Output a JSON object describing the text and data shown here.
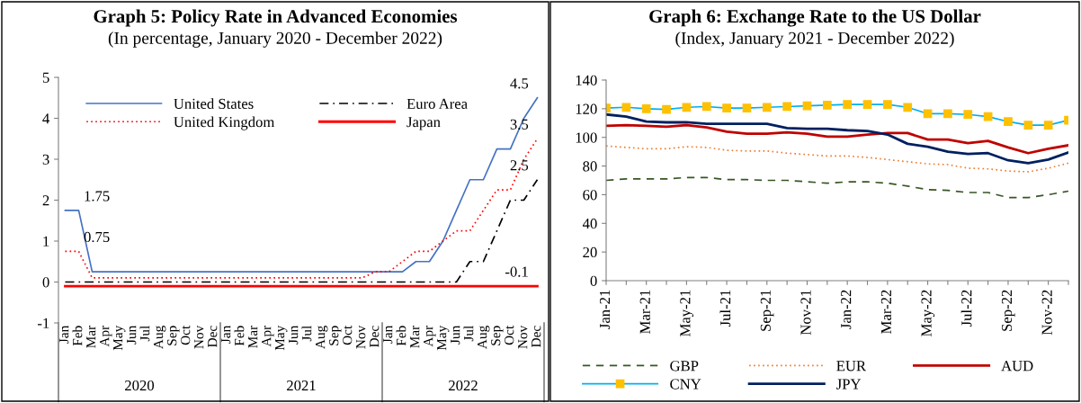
{
  "chart_data": [
    {
      "type": "line",
      "title": "Graph 5: Policy Rate in Advanced Economies",
      "subtitle": "(In percentage, January 2020 - December 2022)",
      "categories": [
        "Jan",
        "Feb",
        "Mar",
        "Apr",
        "May",
        "Jun",
        "Jul",
        "Aug",
        "Sep",
        "Oct",
        "Nov",
        "Dec",
        "Jan",
        "Feb",
        "Mar",
        "Apr",
        "May",
        "Jun",
        "Jul",
        "Aug",
        "Sep",
        "Oct",
        "Nov",
        "Dec",
        "Jan",
        "Feb",
        "Mar",
        "Apr",
        "May",
        "Jun",
        "Jul",
        "Aug",
        "Sep",
        "Oct",
        "Nov",
        "Dec"
      ],
      "series": [
        {
          "name": "United States",
          "color": "#4472c4",
          "line_style": "solid",
          "value_labels": [
            null,
            "1.75",
            null,
            null,
            null,
            null,
            null,
            null,
            null,
            null,
            null,
            null,
            null,
            null,
            null,
            null,
            null,
            null,
            null,
            null,
            null,
            null,
            null,
            null,
            null,
            null,
            null,
            null,
            null,
            null,
            null,
            null,
            null,
            null,
            null,
            "4.5"
          ],
          "values": [
            1.75,
            1.75,
            0.25,
            0.25,
            0.25,
            0.25,
            0.25,
            0.25,
            0.25,
            0.25,
            0.25,
            0.25,
            0.25,
            0.25,
            0.25,
            0.25,
            0.25,
            0.25,
            0.25,
            0.25,
            0.25,
            0.25,
            0.25,
            0.25,
            0.25,
            0.25,
            0.5,
            0.5,
            1.0,
            1.75,
            2.5,
            2.5,
            3.25,
            3.25,
            4.0,
            4.5
          ]
        },
        {
          "name": "United Kingdom",
          "color": "#ff0000",
          "line_style": "dotted",
          "value_labels": [
            null,
            "0.75",
            null,
            null,
            null,
            null,
            null,
            null,
            null,
            null,
            null,
            null,
            null,
            null,
            null,
            null,
            null,
            null,
            null,
            null,
            null,
            null,
            null,
            null,
            null,
            null,
            null,
            null,
            null,
            null,
            null,
            null,
            null,
            null,
            null,
            "3.5"
          ],
          "values": [
            0.75,
            0.75,
            0.1,
            0.1,
            0.1,
            0.1,
            0.1,
            0.1,
            0.1,
            0.1,
            0.1,
            0.1,
            0.1,
            0.1,
            0.1,
            0.1,
            0.1,
            0.1,
            0.1,
            0.1,
            0.1,
            0.1,
            0.1,
            0.25,
            0.25,
            0.5,
            0.75,
            0.75,
            1.0,
            1.25,
            1.25,
            1.75,
            2.25,
            2.25,
            3.0,
            3.5
          ]
        },
        {
          "name": "Euro Area",
          "color": "#000000",
          "line_style": "dashdot",
          "value_labels": [
            null,
            null,
            null,
            null,
            null,
            null,
            null,
            null,
            null,
            null,
            null,
            null,
            null,
            null,
            null,
            null,
            null,
            null,
            null,
            null,
            null,
            null,
            null,
            null,
            null,
            null,
            null,
            null,
            null,
            null,
            null,
            null,
            null,
            null,
            null,
            "2.5"
          ],
          "values": [
            0,
            0,
            0,
            0,
            0,
            0,
            0,
            0,
            0,
            0,
            0,
            0,
            0,
            0,
            0,
            0,
            0,
            0,
            0,
            0,
            0,
            0,
            0,
            0,
            0,
            0,
            0,
            0,
            0,
            0,
            0.5,
            0.5,
            1.25,
            2.0,
            2.0,
            2.5
          ]
        },
        {
          "name": "Japan",
          "color": "#ff0000",
          "line_style": "solid",
          "value_labels": [
            null,
            null,
            null,
            null,
            null,
            null,
            null,
            null,
            null,
            null,
            null,
            null,
            null,
            null,
            null,
            null,
            null,
            null,
            null,
            null,
            null,
            null,
            null,
            null,
            null,
            null,
            null,
            null,
            null,
            null,
            null,
            null,
            null,
            null,
            null,
            "-0.1"
          ],
          "values": [
            -0.1,
            -0.1,
            -0.1,
            -0.1,
            -0.1,
            -0.1,
            -0.1,
            -0.1,
            -0.1,
            -0.1,
            -0.1,
            -0.1,
            -0.1,
            -0.1,
            -0.1,
            -0.1,
            -0.1,
            -0.1,
            -0.1,
            -0.1,
            -0.1,
            -0.1,
            -0.1,
            -0.1,
            -0.1,
            -0.1,
            -0.1,
            -0.1,
            -0.1,
            -0.1,
            -0.1,
            -0.1,
            -0.1,
            -0.1,
            -0.1,
            -0.1
          ]
        }
      ],
      "ylim": [
        -1,
        5
      ],
      "yticks": [
        -1,
        0,
        1,
        2,
        3,
        4,
        5
      ],
      "grid": false,
      "legend": "top left",
      "annotations": [
        "2020",
        "2021",
        "2022"
      ]
    },
    {
      "type": "line",
      "title": "Graph 6: Exchange Rate to the US Dollar",
      "subtitle": "(Index, January 2021 - December 2022)",
      "categories": [
        "Jan-21",
        null,
        "Mar-21",
        null,
        "May-21",
        null,
        "Jul-21",
        null,
        "Sep-21",
        null,
        "Nov-21",
        null,
        "Jan-22",
        null,
        "Mar-22",
        null,
        "May-22",
        null,
        "Jul-22",
        null,
        "Sep-22",
        null,
        "Nov-22",
        null
      ],
      "series": [
        {
          "name": "GBP",
          "color": "#375623",
          "line_style": "dashed",
          "values": [
            70,
            71,
            71,
            71,
            72,
            72,
            70.5,
            70.5,
            70,
            70,
            69,
            68,
            69,
            69,
            68,
            66,
            63.5,
            63,
            61.5,
            61.5,
            58,
            58,
            60,
            62.5
          ]
        },
        {
          "name": "EUR",
          "color": "#ed7d31",
          "line_style": "dotted",
          "values": [
            94,
            93,
            92,
            92,
            93.5,
            93,
            91,
            90.5,
            90.5,
            89,
            88,
            87,
            87,
            86,
            84.5,
            83,
            81.5,
            81,
            78.5,
            78,
            76.5,
            76,
            78.5,
            82
          ]
        },
        {
          "name": "AUD",
          "color": "#c00000",
          "line_style": "solid",
          "values": [
            108,
            108.5,
            108,
            107.5,
            108.5,
            107,
            104,
            102.5,
            102.5,
            103.5,
            102.5,
            100.5,
            100.5,
            102,
            103,
            103,
            98.5,
            98.5,
            96,
            97.5,
            93,
            89,
            92,
            94.5
          ]
        },
        {
          "name": "CNY",
          "color": "#00b0f0",
          "line_style": "solid",
          "marker": "square",
          "values": [
            120.5,
            121,
            120,
            119.5,
            121,
            121.5,
            120.5,
            120.5,
            121,
            121.5,
            122,
            122.5,
            123,
            123,
            123,
            121,
            116.5,
            116.5,
            116,
            114.5,
            111,
            108.5,
            108.5,
            112
          ]
        },
        {
          "name": "JPY",
          "color": "#002060",
          "line_style": "solid",
          "values": [
            116,
            114.5,
            111,
            110.5,
            110.5,
            109.5,
            109.5,
            109.5,
            109.5,
            106.5,
            106,
            106,
            105,
            104.5,
            102,
            95.5,
            93.5,
            90,
            88.5,
            89,
            84,
            82,
            84.5,
            89.5
          ]
        }
      ],
      "ylim": [
        0,
        140
      ],
      "yticks": [
        0,
        20,
        40,
        60,
        80,
        100,
        120,
        140
      ],
      "grid": false,
      "legend": "bottom"
    }
  ]
}
